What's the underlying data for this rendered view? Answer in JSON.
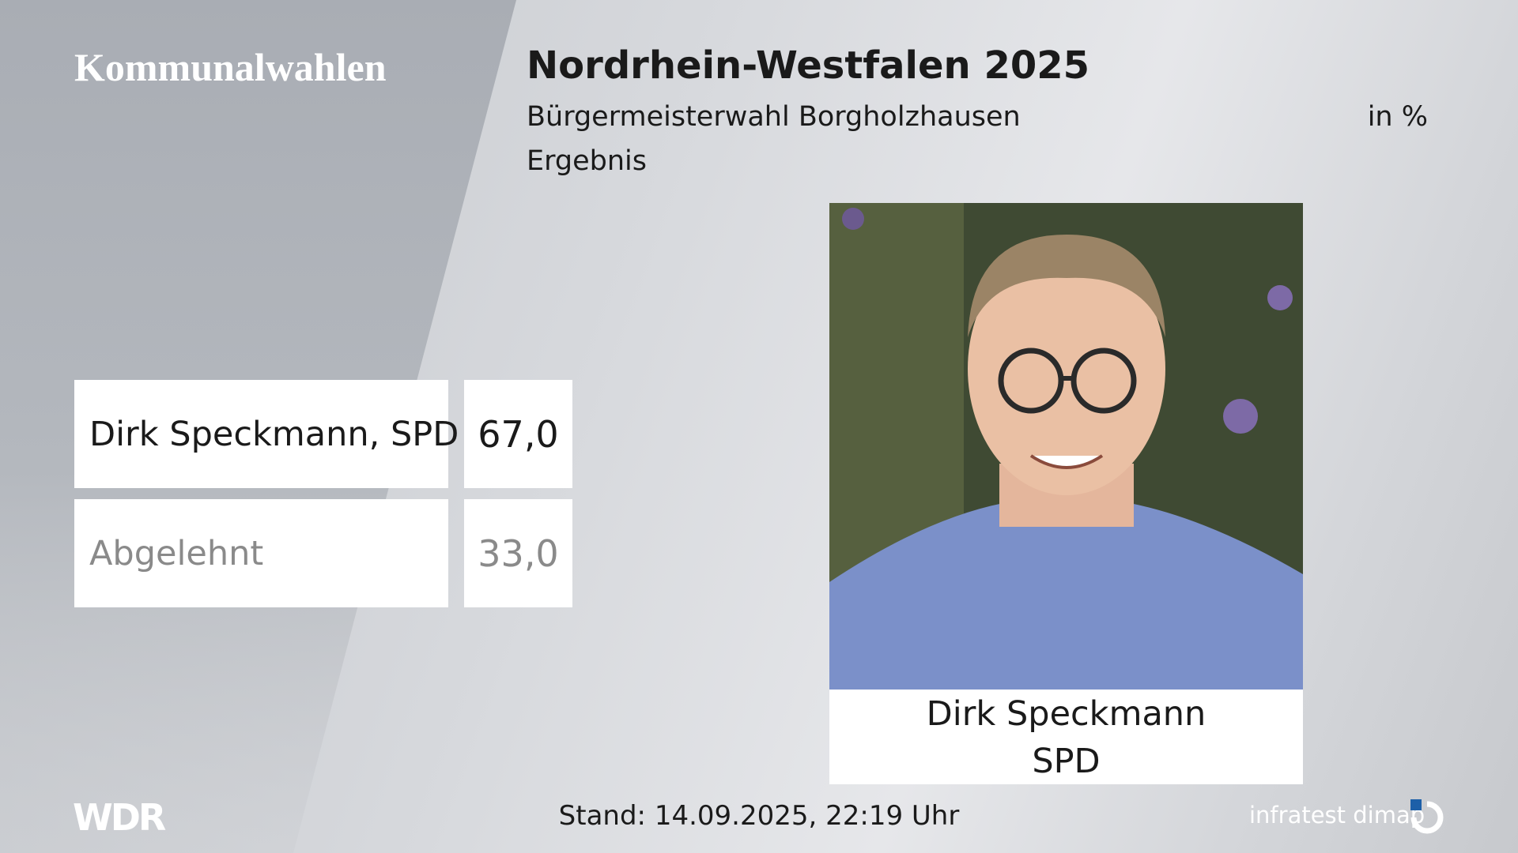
{
  "header": {
    "section": "Kommunalwahlen",
    "title": "Nordrhein-Westfalen 2025",
    "subtitle": "Bürgermeisterwahl Borgholzhausen",
    "unit": "in %",
    "status": "Ergebnis"
  },
  "table": {
    "rows": [
      [
        "Dirk Speckmann, SPD",
        "67,0"
      ],
      [
        "Abgelehnt",
        "33,0"
      ]
    ]
  },
  "candidate": {
    "name": "Dirk Speckmann",
    "party": "SPD"
  },
  "footer": {
    "broadcaster": "WDR",
    "timestamp": "Stand: 14.09.2025, 22:19 Uhr",
    "source": "infratest dimap"
  }
}
